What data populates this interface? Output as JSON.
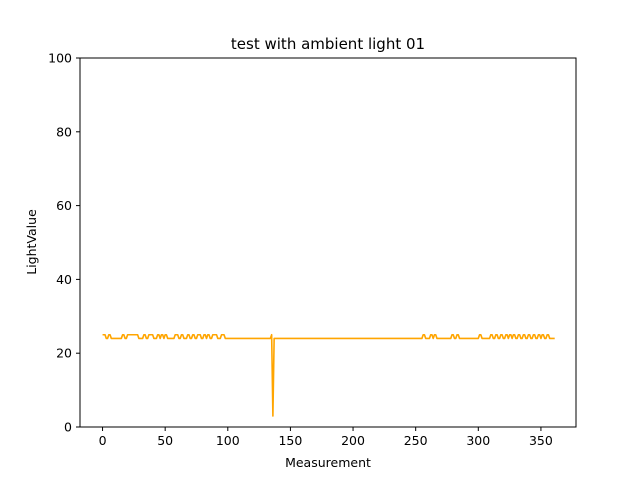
{
  "chart_data": {
    "type": "line",
    "title": "test with ambient light 01",
    "xlabel": "Measurement",
    "ylabel": "LightValue",
    "xlim": [
      -18,
      378
    ],
    "ylim": [
      0,
      100
    ],
    "xticks": [
      0,
      50,
      100,
      150,
      200,
      250,
      300,
      350
    ],
    "yticks": [
      0,
      20,
      40,
      60,
      80,
      100
    ],
    "grid": false,
    "series": [
      {
        "color": "#ffa500",
        "baseline": 24,
        "length": 362,
        "spikes": [
          {
            "x": 136,
            "y": 3
          }
        ],
        "highs": [
          0,
          1,
          2,
          5,
          6,
          16,
          17,
          20,
          21,
          22,
          23,
          24,
          25,
          26,
          27,
          28,
          33,
          34,
          37,
          38,
          39,
          40,
          44,
          45,
          47,
          48,
          50,
          51,
          58,
          59,
          60,
          63,
          64,
          68,
          69,
          72,
          73,
          76,
          77,
          78,
          81,
          82,
          84,
          85,
          88,
          89,
          90,
          91,
          95,
          96,
          97,
          135,
          256,
          257,
          262,
          263,
          265,
          266,
          279,
          280,
          283,
          284,
          301,
          302,
          310,
          311,
          314,
          315,
          318,
          319,
          322,
          323,
          325,
          326,
          328,
          329,
          332,
          333,
          336,
          337,
          340,
          341,
          344,
          345,
          348,
          349,
          351,
          352,
          355,
          356
        ]
      }
    ]
  }
}
